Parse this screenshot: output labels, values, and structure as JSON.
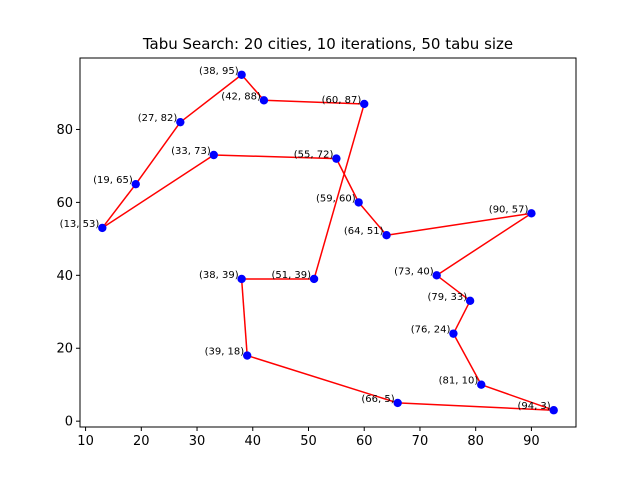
{
  "chart_data": {
    "type": "line",
    "title": "Tabu Search: 20 cities, 10 iterations, 50 tabu size",
    "xlabel": "",
    "ylabel": "",
    "xlim": [
      9,
      98
    ],
    "ylim": [
      -1.6,
      99.6
    ],
    "xticks": [
      10,
      20,
      30,
      40,
      50,
      60,
      70,
      80,
      90
    ],
    "yticks": [
      0,
      20,
      40,
      60,
      80
    ],
    "grid": false,
    "line_color": "#ff0000",
    "marker_color": "#0000ff",
    "tour": [
      {
        "x": 13,
        "y": 53,
        "label": "(13, 53)"
      },
      {
        "x": 19,
        "y": 65,
        "label": "(19, 65)"
      },
      {
        "x": 27,
        "y": 82,
        "label": "(27, 82)"
      },
      {
        "x": 38,
        "y": 95,
        "label": "(38, 95)"
      },
      {
        "x": 42,
        "y": 88,
        "label": "(42, 88)"
      },
      {
        "x": 60,
        "y": 87,
        "label": "(60, 87)"
      },
      {
        "x": 51,
        "y": 39,
        "label": "(51, 39)"
      },
      {
        "x": 38,
        "y": 39,
        "label": "(38, 39)"
      },
      {
        "x": 39,
        "y": 18,
        "label": "(39, 18)"
      },
      {
        "x": 66,
        "y": 5,
        "label": "(66, 5)"
      },
      {
        "x": 94,
        "y": 3,
        "label": "(94, 3)"
      },
      {
        "x": 81,
        "y": 10,
        "label": "(81, 10)"
      },
      {
        "x": 76,
        "y": 24,
        "label": "(76, 24)"
      },
      {
        "x": 79,
        "y": 33,
        "label": "(79, 33)"
      },
      {
        "x": 73,
        "y": 40,
        "label": "(73, 40)"
      },
      {
        "x": 90,
        "y": 57,
        "label": "(90, 57)"
      },
      {
        "x": 64,
        "y": 51,
        "label": "(64, 51)"
      },
      {
        "x": 59,
        "y": 60,
        "label": "(59, 60)"
      },
      {
        "x": 55,
        "y": 72,
        "label": "(55, 72)"
      },
      {
        "x": 33,
        "y": 73,
        "label": "(33, 73)"
      },
      {
        "x": 13,
        "y": 53,
        "label": "(13, 53)"
      }
    ]
  }
}
